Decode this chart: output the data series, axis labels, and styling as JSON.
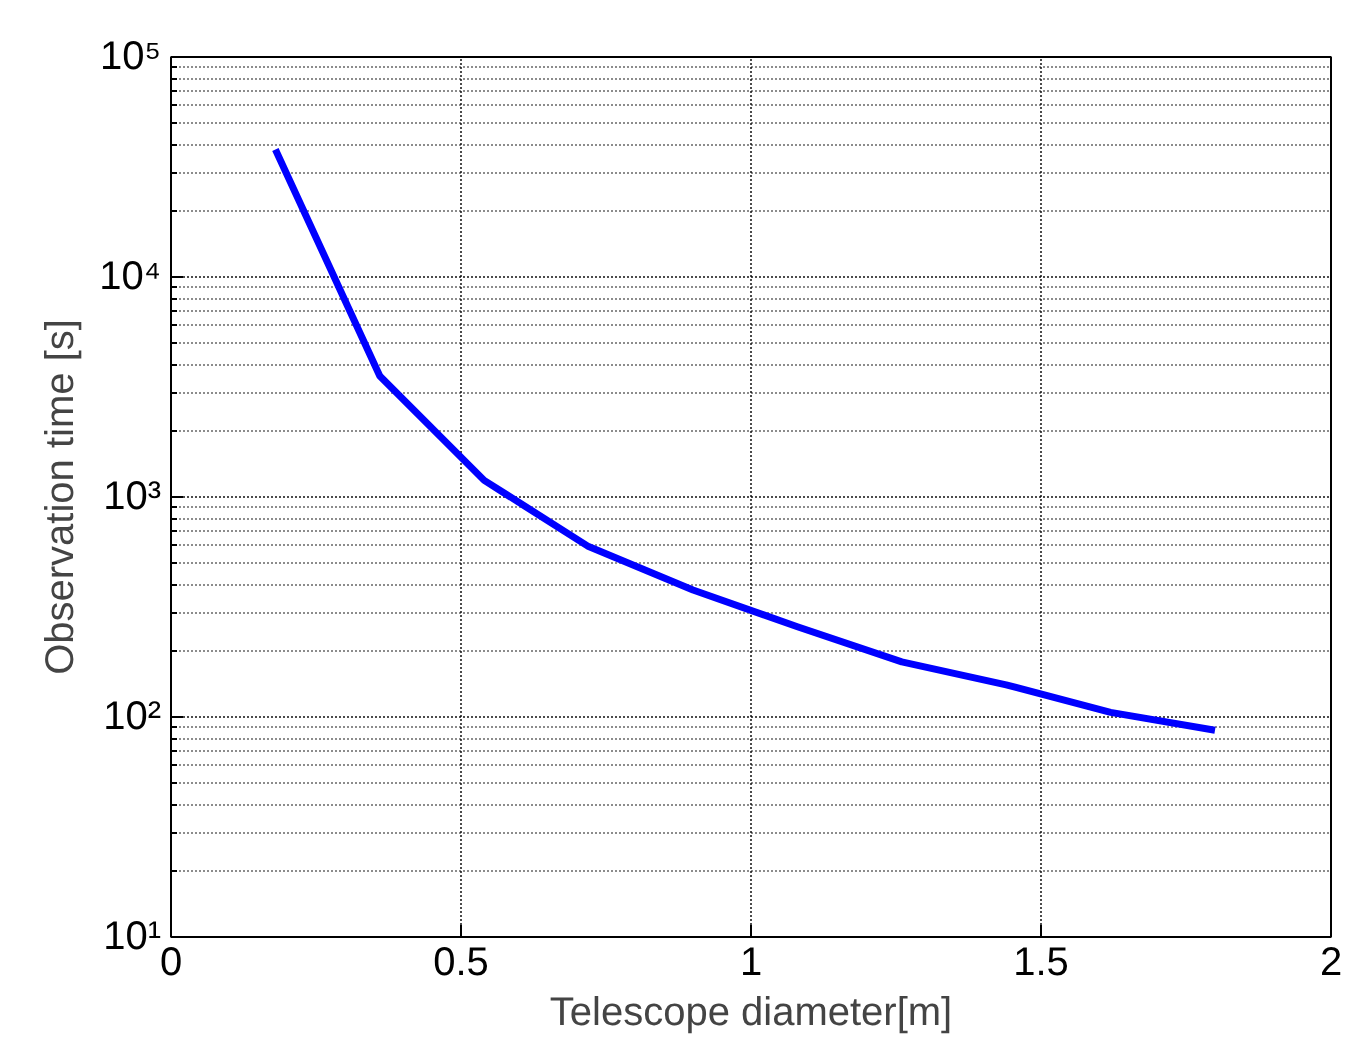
{
  "chart_data": {
    "type": "line",
    "xlabel": "Telescope diameter[m]",
    "ylabel": "Observation time [s]",
    "x": [
      0.18,
      0.36,
      0.54,
      0.72,
      0.9,
      1.08,
      1.26,
      1.44,
      1.62,
      1.8
    ],
    "series": [
      {
        "color": "#0000ff",
        "values": [
          38000,
          3550,
          1190,
          595,
          378,
          257,
          178,
          140,
          105,
          87
        ]
      }
    ],
    "xlim": [
      0,
      2
    ],
    "xticks": [
      0,
      0.5,
      1,
      1.5,
      2
    ],
    "ylim": [
      10,
      100000
    ],
    "yticks": [
      {
        "value": 10,
        "label": "10¹"
      },
      {
        "value": 100,
        "label": "10²"
      },
      {
        "value": 1000,
        "label": "10³"
      },
      {
        "value": 10000,
        "label": "10⁴"
      },
      {
        "value": 100000,
        "label": "10⁵"
      }
    ],
    "log": "y",
    "grid": true,
    "line_style": "solid",
    "marker": "none"
  }
}
